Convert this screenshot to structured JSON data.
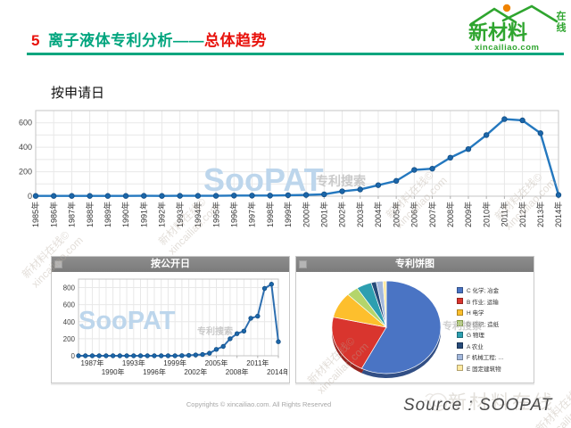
{
  "header": {
    "slide_number": "5",
    "title_main": "离子液体专利分析——",
    "title_highlight": "总体趋势",
    "accent_colors": {
      "teal": "#00a57e",
      "red": "#e8120c"
    },
    "logo": {
      "brand": "新材料",
      "suffix": "在线",
      "domain": "xincailiao.com",
      "colors": {
        "green": "#2fa52f",
        "orange": "#f08300"
      }
    }
  },
  "section_label": "按申请日",
  "chart_data": [
    {
      "id": "by-filing-date",
      "type": "line",
      "title": "按申请日",
      "x": [
        "1985年",
        "1986年",
        "1987年",
        "1988年",
        "1989年",
        "1990年",
        "1991年",
        "1992年",
        "1993年",
        "1994年",
        "1995年",
        "1996年",
        "1997年",
        "1998年",
        "1999年",
        "2000年",
        "2001年",
        "2002年",
        "2003年",
        "2004年",
        "2005年",
        "2006年",
        "2007年",
        "2008年",
        "2009年",
        "2010年",
        "2011年",
        "2012年",
        "2013年",
        "2014年"
      ],
      "values": [
        2,
        2,
        2,
        2,
        2,
        2,
        3,
        2,
        3,
        3,
        3,
        5,
        5,
        5,
        8,
        10,
        15,
        40,
        55,
        90,
        125,
        215,
        225,
        315,
        385,
        500,
        630,
        620,
        515,
        10
      ],
      "ylim": [
        0,
        700
      ],
      "yticks": [
        0,
        200,
        400,
        600
      ],
      "grid": true,
      "line_color": "#2478bf",
      "xlabel": "",
      "ylabel": ""
    },
    {
      "id": "by-publication-date",
      "type": "line",
      "title": "按公开日",
      "x": [
        "1985年",
        "1986年",
        "1987年",
        "1988年",
        "1989年",
        "1990年",
        "1991年",
        "1992年",
        "1993年",
        "1994年",
        "1995年",
        "1996年",
        "1997年",
        "1998年",
        "1999年",
        "2000年",
        "2001年",
        "2002年",
        "2003年",
        "2004年",
        "2005年",
        "2006年",
        "2007年",
        "2008年",
        "2009年",
        "2010年",
        "2011年",
        "2012年",
        "2013年",
        "2014年"
      ],
      "values": [
        0,
        0,
        0,
        0,
        0,
        0,
        0,
        0,
        0,
        0,
        0,
        0,
        0,
        0,
        0,
        2,
        5,
        10,
        15,
        30,
        75,
        110,
        200,
        260,
        290,
        440,
        465,
        790,
        840,
        165
      ],
      "ylim": [
        0,
        900
      ],
      "yticks": [
        0,
        200,
        400,
        600,
        800
      ],
      "xticks_shown": [
        "1987年",
        "1990年",
        "1993年",
        "1996年",
        "1999年",
        "2002年",
        "2005年",
        "2008年",
        "2011年",
        "2014年"
      ],
      "grid": true,
      "line_color": "#2e6fb0",
      "xlabel": "",
      "ylabel": ""
    },
    {
      "id": "patent-pie",
      "type": "pie",
      "title": "专利饼图",
      "legend_position": "right",
      "slices": [
        {
          "label": "C 化学; 冶金",
          "pct": 57.5,
          "color": "#4a74c4"
        },
        {
          "label": "B 作业; 运输",
          "pct": 21,
          "color": "#d9352e"
        },
        {
          "label": "H 电学",
          "pct": 9,
          "color": "#fdbf2d"
        },
        {
          "label": "D 纺织; 造纸",
          "pct": 3.5,
          "color": "#b4d56b"
        },
        {
          "label": "G 物理",
          "pct": 4.5,
          "color": "#2d9fb0"
        },
        {
          "label": "A 农业",
          "pct": 1.5,
          "color": "#274b7a"
        },
        {
          "label": "F 机械工程; …",
          "pct": 2,
          "color": "#a3b8dc"
        },
        {
          "label": "E 固定建筑物",
          "pct": 1,
          "color": "#ffe9a0"
        }
      ]
    }
  ],
  "watermarks": {
    "soopat": "SooPAT",
    "soopat_sub": "专利搜索",
    "diag_line1": "新材料在线©",
    "diag_line2": "xincailiao.com",
    "brand": "新材料在线"
  },
  "footer": {
    "copyright": "Copyrights © xincailiao.com. All Rights Reserved",
    "source": "Source : SOOPAT"
  }
}
